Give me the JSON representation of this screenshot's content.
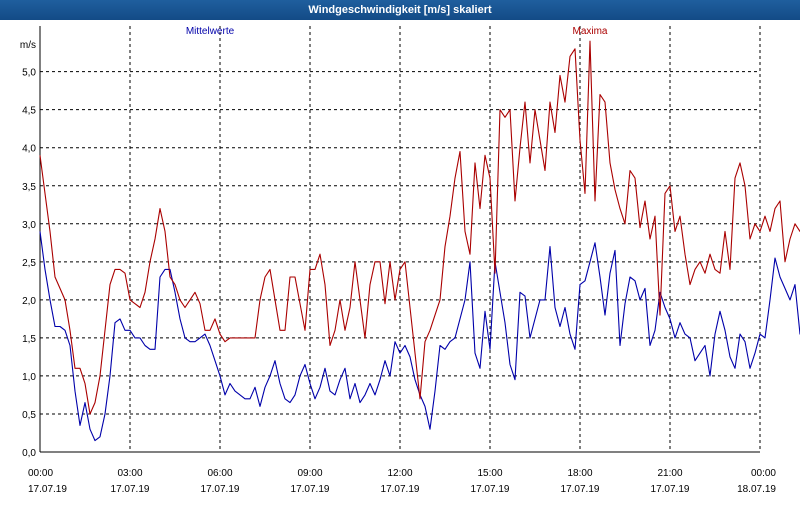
{
  "window": {
    "title": "Windgeschwindigkeit [m/s] skaliert"
  },
  "chart_data": {
    "type": "line",
    "title": "Windgeschwindigkeit [m/s] skaliert",
    "ylabel": "m/s",
    "xlabel": "",
    "ylim": [
      0,
      5.6
    ],
    "xlim_hours": [
      0,
      24
    ],
    "grid": true,
    "yticks": [
      "0,0",
      "0,5",
      "1,0",
      "1,5",
      "2,0",
      "2,5",
      "3,0",
      "3,5",
      "4,0",
      "4,5",
      "5,0"
    ],
    "xticks": [
      {
        "time": "00:00",
        "date": "17.07.19"
      },
      {
        "time": "03:00",
        "date": "17.07.19"
      },
      {
        "time": "06:00",
        "date": "17.07.19"
      },
      {
        "time": "09:00",
        "date": "17.07.19"
      },
      {
        "time": "12:00",
        "date": "17.07.19"
      },
      {
        "time": "15:00",
        "date": "17.07.19"
      },
      {
        "time": "18:00",
        "date": "17.07.19"
      },
      {
        "time": "21:00",
        "date": "17.07.19"
      },
      {
        "time": "00:00",
        "date": "18.07.19"
      }
    ],
    "series": [
      {
        "name": "Mittelwerte",
        "color": "#0000aa",
        "interval_minutes": 10,
        "values": [
          2.9,
          2.4,
          2.0,
          1.65,
          1.65,
          1.6,
          1.4,
          0.8,
          0.35,
          0.65,
          0.3,
          0.15,
          0.2,
          0.5,
          1.0,
          1.7,
          1.75,
          1.6,
          1.6,
          1.5,
          1.5,
          1.4,
          1.35,
          1.35,
          2.3,
          2.4,
          2.4,
          2.1,
          1.75,
          1.5,
          1.45,
          1.45,
          1.5,
          1.55,
          1.4,
          1.2,
          1.0,
          0.75,
          0.9,
          0.8,
          0.75,
          0.7,
          0.7,
          0.85,
          0.6,
          0.85,
          1.0,
          1.2,
          0.9,
          0.7,
          0.65,
          0.75,
          1.0,
          1.15,
          0.9,
          0.7,
          0.85,
          1.1,
          0.8,
          0.75,
          0.95,
          1.1,
          0.7,
          0.9,
          0.65,
          0.75,
          0.9,
          0.75,
          0.95,
          1.2,
          1.0,
          1.45,
          1.3,
          1.4,
          1.25,
          0.95,
          0.75,
          0.6,
          0.3,
          0.8,
          1.4,
          1.35,
          1.45,
          1.5,
          1.75,
          2.0,
          2.5,
          1.3,
          1.1,
          1.85,
          1.35,
          2.5,
          2.1,
          1.7,
          1.15,
          0.95,
          2.1,
          2.05,
          1.5,
          1.75,
          2.0,
          2.0,
          2.7,
          1.9,
          1.65,
          1.9,
          1.55,
          1.35,
          2.2,
          2.25,
          2.5,
          2.75,
          2.3,
          1.8,
          2.35,
          2.65,
          1.4,
          1.95,
          2.3,
          2.25,
          2.0,
          2.15,
          1.4,
          1.6,
          2.1,
          1.9,
          1.75,
          1.5,
          1.7,
          1.55,
          1.5,
          1.2,
          1.3,
          1.4,
          1.0,
          1.55,
          1.85,
          1.6,
          1.25,
          1.1,
          1.55,
          1.45,
          1.1,
          1.3,
          1.55,
          1.5,
          2.0,
          2.55,
          2.3,
          2.15,
          2.0,
          2.2,
          1.55,
          1.6,
          1.9,
          2.1,
          2.05,
          1.75,
          1.7,
          2.25,
          2.25,
          2.0,
          2.2,
          1.5
        ]
      },
      {
        "name": "Maxima",
        "color": "#aa0000",
        "interval_minutes": 10,
        "values": [
          3.9,
          3.4,
          2.9,
          2.3,
          2.15,
          2.0,
          1.6,
          1.1,
          1.1,
          0.9,
          0.5,
          0.65,
          1.0,
          1.6,
          2.2,
          2.4,
          2.4,
          2.35,
          2.0,
          1.95,
          1.9,
          2.1,
          2.5,
          2.8,
          3.2,
          2.9,
          2.3,
          2.2,
          2.0,
          1.9,
          2.0,
          2.1,
          1.95,
          1.6,
          1.6,
          1.75,
          1.55,
          1.45,
          1.5,
          1.5,
          1.5,
          1.5,
          1.5,
          1.5,
          2.0,
          2.3,
          2.4,
          2.0,
          1.6,
          1.6,
          2.3,
          2.3,
          1.95,
          1.6,
          2.4,
          2.4,
          2.6,
          2.2,
          1.4,
          1.6,
          2.0,
          1.6,
          1.9,
          2.5,
          2.0,
          1.5,
          2.2,
          2.5,
          2.5,
          1.95,
          2.5,
          2.0,
          2.4,
          2.5,
          1.9,
          1.3,
          0.7,
          1.45,
          1.6,
          1.8,
          2.0,
          2.7,
          3.1,
          3.6,
          3.95,
          2.9,
          2.6,
          3.8,
          3.2,
          3.9,
          3.6,
          2.35,
          4.5,
          4.4,
          4.5,
          3.3,
          4.0,
          4.6,
          3.8,
          4.5,
          4.1,
          3.7,
          4.6,
          4.2,
          4.95,
          4.6,
          5.2,
          5.3,
          4.1,
          3.4,
          5.4,
          3.3,
          4.7,
          4.6,
          3.8,
          3.45,
          3.2,
          3.0,
          3.7,
          3.6,
          2.95,
          3.3,
          2.8,
          3.1,
          1.8,
          3.4,
          3.5,
          2.9,
          3.1,
          2.6,
          2.2,
          2.4,
          2.5,
          2.35,
          2.6,
          2.4,
          2.35,
          2.9,
          2.4,
          3.6,
          3.8,
          3.5,
          2.8,
          3.0,
          2.9,
          3.1,
          2.9,
          3.2,
          3.3,
          2.5,
          2.8,
          3.0,
          2.9,
          2.9,
          3.0,
          3.1,
          2.8,
          2.9,
          2.7
        ]
      }
    ]
  }
}
